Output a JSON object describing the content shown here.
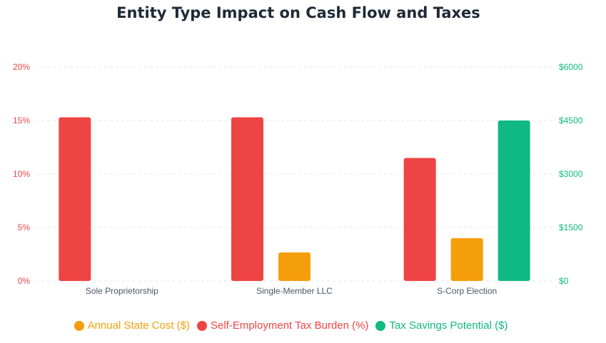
{
  "colors": {
    "state_cost": "#f59e0b",
    "se_tax": "#ef4444",
    "tax_savings": "#10b981",
    "title": "#1f2a37",
    "category_label": "#4b5563",
    "grid": "#e5e7eb"
  },
  "chart_data": {
    "type": "bar",
    "title": "Entity Type Impact on Cash Flow and Taxes",
    "categories": [
      "Sole Proprietorship",
      "Single-Member LLC",
      "S-Corp Election"
    ],
    "series": [
      {
        "name": "Self-Employment Tax Burden (%)",
        "axis": "left",
        "color": "#ef4444",
        "values": [
          15.3,
          15.3,
          11.5
        ]
      },
      {
        "name": "Annual State Cost ($)",
        "axis": "right",
        "color": "#f59e0b",
        "values": [
          0,
          800,
          1200
        ]
      },
      {
        "name": "Tax Savings Potential ($)",
        "axis": "right",
        "color": "#10b981",
        "values": [
          0,
          0,
          4500
        ]
      }
    ],
    "y_left": {
      "ylim": [
        0,
        20
      ],
      "ticks": [
        "0%",
        "5%",
        "10%",
        "15%",
        "20%"
      ],
      "color": "#ef4444"
    },
    "y_right": {
      "ylim": [
        0,
        6000
      ],
      "ticks": [
        "$0",
        "$1500",
        "$3000",
        "$4500",
        "$6000"
      ],
      "color": "#10b981"
    },
    "grid": true,
    "legend": {
      "position": "bottom",
      "items": [
        {
          "label": "Annual State Cost ($)",
          "color": "#f59e0b"
        },
        {
          "label": "Self-Employment Tax Burden (%)",
          "color": "#ef4444"
        },
        {
          "label": "Tax Savings Potential ($)",
          "color": "#10b981"
        }
      ]
    }
  }
}
